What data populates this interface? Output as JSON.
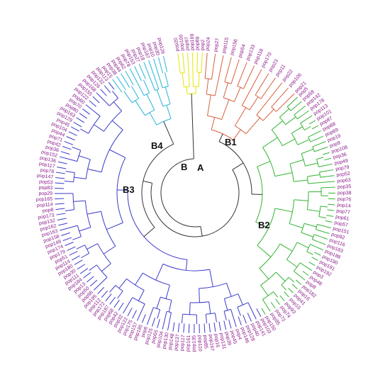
{
  "colors": {
    "root": "#333333",
    "A": "#e5e500",
    "B1": "#d9603b",
    "B2": "#32b432",
    "B3": "#3b3bcc",
    "B4": "#2ab4d8",
    "leaf_text": "#8b1a8b"
  },
  "clade_labels": {
    "A": "A",
    "B": "B",
    "B1": "B1",
    "B2": "B2",
    "B3": "B3",
    "B4": "B4"
  },
  "leaves": {
    "A": [
      "pop20",
      "pop100",
      "pop97",
      "pop169",
      "pop89",
      "pop2"
    ],
    "B1": [
      "pop24",
      "pop27",
      "pop115",
      "pop156",
      "pop54",
      "pop133",
      "pop118",
      "pop170",
      "pop23",
      "pop11",
      "pop22",
      "pop106",
      "pop21"
    ],
    "B2": [
      "pop5",
      "pop58",
      "pop142",
      "pop178",
      "pop113",
      "pop101",
      "pop87",
      "pop88",
      "pop69",
      "pop19",
      "pop9",
      "pop108",
      "pop36",
      "pop49",
      "pop79",
      "pop52",
      "pop63",
      "pop35",
      "pop38",
      "pop76",
      "pop14",
      "pop77",
      "pop61",
      "pop57",
      "pop151",
      "pop92",
      "pop116",
      "pop183",
      "pop188",
      "pop190",
      "pop191",
      "pop192",
      "pop3",
      "pop48",
      "pop8",
      "pop182",
      "pop16",
      "pop41",
      "pop15",
      "pop93",
      "pop74",
      "pop72",
      "pop95",
      "pop150"
    ],
    "B3": [
      "pop103",
      "pop141",
      "pop40",
      "pop128",
      "pop146",
      "pop4",
      "pop45",
      "pop39",
      "pop131",
      "pop16",
      "pop167",
      "pop85",
      "pop110",
      "pop135",
      "pop161",
      "pop117",
      "pop137",
      "pop148",
      "pop130",
      "pop104",
      "pop55",
      "pop125",
      "pop6",
      "pop185",
      "pop157",
      "pop175",
      "pop122",
      "pop32",
      "pop42",
      "pop68",
      "pop187",
      "pop172",
      "pop112",
      "pop195",
      "pop96",
      "pop50",
      "pop13",
      "pop184",
      "pop111",
      "pop30",
      "pop180",
      "pop114",
      "pop51",
      "pop179",
      "pop174",
      "pop149",
      "pop158",
      "pop163",
      "pop162",
      "pop132",
      "pop173",
      "pop8",
      "pop114",
      "pop165",
      "pop29",
      "pop83",
      "pop53",
      "pop147",
      "pop78",
      "pop117",
      "pop136",
      "pop152",
      "pop36",
      "pop42",
      "pop71",
      "pop44",
      "pop104",
      "pop45",
      "pop129",
      "pop163",
      "pop80",
      "pop70",
      "pop60",
      "pop122",
      "pop155",
      "pop168",
      "pop126",
      "pop132",
      "pop113"
    ],
    "B4": [
      "pop15",
      "pop38",
      "pop44",
      "pop62",
      "pop78",
      "pop153",
      "pop27",
      "pop18",
      "pop187",
      "pop10",
      "pop30",
      "pop126"
    ]
  }
}
